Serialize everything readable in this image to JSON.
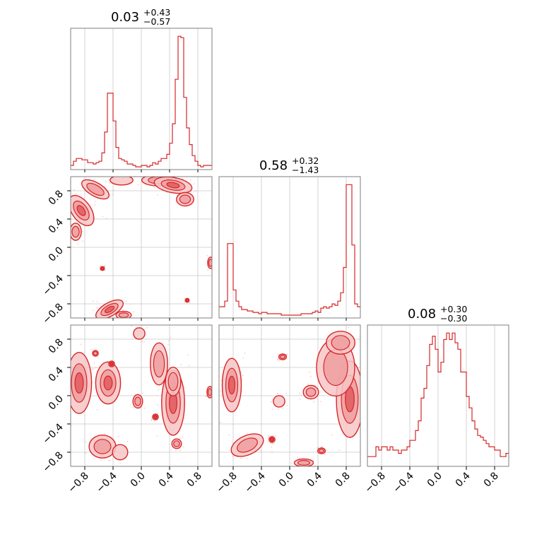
{
  "chart_data": {
    "type": "corner",
    "color": "#d62728",
    "fill_colors": [
      "#f7c6c7",
      "#ee9ea0",
      "#e05a5e"
    ],
    "axis_range": [
      -1.0,
      1.0
    ],
    "ticks": [
      -0.8,
      -0.4,
      0.0,
      0.4,
      0.8
    ],
    "tick_labels": [
      "−0.8",
      "−0.4",
      "0.0",
      "0.4",
      "0.8"
    ],
    "grid": true,
    "parameters": [
      {
        "median": "0.03",
        "plus": "+0.43",
        "minus": "−0.57"
      },
      {
        "median": "0.58",
        "plus": "+0.32",
        "minus": "−1.43"
      },
      {
        "median": "0.08",
        "plus": "+0.30",
        "minus": "−0.30"
      }
    ],
    "histograms": [
      {
        "bin_edges": [
          -1.0,
          1.0
        ],
        "values": [
          0.03,
          0.06,
          0.08,
          0.08,
          0.07,
          0.07,
          0.05,
          0.05,
          0.04,
          0.05,
          0.06,
          0.12,
          0.27,
          0.55,
          0.55,
          0.35,
          0.16,
          0.08,
          0.07,
          0.06,
          0.04,
          0.04,
          0.03,
          0.02,
          0.02,
          0.03,
          0.03,
          0.02,
          0.03,
          0.05,
          0.04,
          0.06,
          0.08,
          0.08,
          0.11,
          0.19,
          0.33,
          0.65,
          0.96,
          0.95,
          0.52,
          0.3,
          0.18,
          0.1,
          0.06,
          0.03,
          0.02,
          0.03,
          0.03,
          0.03
        ]
      },
      {
        "bin_edges": [
          -1.0,
          1.0
        ],
        "values": [
          0.08,
          0.08,
          0.12,
          0.53,
          0.53,
          0.2,
          0.12,
          0.08,
          0.06,
          0.06,
          0.05,
          0.05,
          0.04,
          0.04,
          0.03,
          0.04,
          0.04,
          0.03,
          0.03,
          0.03,
          0.03,
          0.03,
          0.02,
          0.02,
          0.02,
          0.02,
          0.02,
          0.02,
          0.02,
          0.03,
          0.03,
          0.03,
          0.03,
          0.04,
          0.05,
          0.04,
          0.07,
          0.08,
          0.07,
          0.08,
          0.1,
          0.09,
          0.12,
          0.18,
          0.36,
          0.95,
          0.95,
          0.52,
          0.1,
          0.08
        ]
      },
      {
        "bin_edges": [
          -1.0,
          1.0
        ],
        "values": [
          0.06,
          0.06,
          0.06,
          0.12,
          0.1,
          0.12,
          0.12,
          0.1,
          0.12,
          0.1,
          0.1,
          0.08,
          0.1,
          0.1,
          0.12,
          0.16,
          0.16,
          0.22,
          0.28,
          0.42,
          0.48,
          0.62,
          0.75,
          0.8,
          0.72,
          0.58,
          0.64,
          0.78,
          0.82,
          0.78,
          0.82,
          0.76,
          0.72,
          0.58,
          0.58,
          0.43,
          0.36,
          0.28,
          0.23,
          0.19,
          0.18,
          0.16,
          0.14,
          0.12,
          0.12,
          0.1,
          0.1,
          0.06,
          0.06,
          0.08
        ]
      }
    ],
    "pairs": [
      {
        "x_param": 0,
        "y_param": 1,
        "blobs": [
          {
            "cx": -0.85,
            "cy": 0.52,
            "rx": 0.18,
            "ry": 0.1,
            "rot": -55,
            "level": 3
          },
          {
            "cx": -0.93,
            "cy": 0.22,
            "rx": 0.06,
            "ry": 0.09,
            "rot": 0,
            "level": 2
          },
          {
            "cx": -0.65,
            "cy": 0.82,
            "rx": 0.16,
            "ry": 0.07,
            "rot": -30,
            "level": 2
          },
          {
            "cx": -0.28,
            "cy": 0.95,
            "rx": 0.12,
            "ry": 0.05,
            "rot": 0,
            "level": 1
          },
          {
            "cx": 0.25,
            "cy": 0.95,
            "rx": 0.18,
            "ry": 0.06,
            "rot": 0,
            "level": 2
          },
          {
            "cx": 0.45,
            "cy": 0.88,
            "rx": 0.2,
            "ry": 0.08,
            "rot": -10,
            "level": 3
          },
          {
            "cx": 0.62,
            "cy": 0.68,
            "rx": 0.09,
            "ry": 0.07,
            "rot": 0,
            "level": 2
          },
          {
            "cx": -0.45,
            "cy": -0.88,
            "rx": 0.16,
            "ry": 0.07,
            "rot": 30,
            "level": 3
          },
          {
            "cx": -0.25,
            "cy": -0.96,
            "rx": 0.08,
            "ry": 0.04,
            "rot": 0,
            "level": 2
          },
          {
            "cx": 0.98,
            "cy": -0.22,
            "rx": 0.03,
            "ry": 0.06,
            "rot": 0,
            "level": 2
          },
          {
            "cx": -0.55,
            "cy": -0.3,
            "rx": 0.02,
            "ry": 0.02,
            "rot": 0,
            "level": 3
          },
          {
            "cx": 0.65,
            "cy": -0.75,
            "rx": 0.02,
            "ry": 0.02,
            "rot": 0,
            "level": 3
          }
        ]
      },
      {
        "x_param": 0,
        "y_param": 2,
        "blobs": [
          {
            "cx": -0.88,
            "cy": 0.18,
            "rx": 0.13,
            "ry": 0.32,
            "rot": 0,
            "level": 3
          },
          {
            "cx": -0.47,
            "cy": 0.18,
            "rx": 0.13,
            "ry": 0.22,
            "rot": 0,
            "level": 3
          },
          {
            "cx": 0.45,
            "cy": -0.1,
            "rx": 0.12,
            "ry": 0.34,
            "rot": 0,
            "level": 3
          },
          {
            "cx": 0.25,
            "cy": 0.45,
            "rx": 0.09,
            "ry": 0.22,
            "rot": 0,
            "level": 2
          },
          {
            "cx": 0.45,
            "cy": 0.2,
            "rx": 0.08,
            "ry": 0.15,
            "rot": 0,
            "level": 2
          },
          {
            "cx": -0.55,
            "cy": -0.72,
            "rx": 0.14,
            "ry": 0.12,
            "rot": 0,
            "level": 2
          },
          {
            "cx": -0.3,
            "cy": -0.8,
            "rx": 0.08,
            "ry": 0.08,
            "rot": 0,
            "level": 1
          },
          {
            "cx": -0.05,
            "cy": -0.08,
            "rx": 0.05,
            "ry": 0.07,
            "rot": 0,
            "level": 2
          },
          {
            "cx": 0.5,
            "cy": -0.68,
            "rx": 0.05,
            "ry": 0.05,
            "rot": 0,
            "level": 2
          },
          {
            "cx": -0.03,
            "cy": 0.88,
            "rx": 0.06,
            "ry": 0.06,
            "rot": 0,
            "level": 1
          },
          {
            "cx": -0.65,
            "cy": 0.6,
            "rx": 0.03,
            "ry": 0.03,
            "rot": 0,
            "level": 2
          },
          {
            "cx": 0.97,
            "cy": 0.05,
            "rx": 0.03,
            "ry": 0.06,
            "rot": 0,
            "level": 2
          },
          {
            "cx": -0.42,
            "cy": 0.45,
            "rx": 0.03,
            "ry": 0.03,
            "rot": 0,
            "level": 3
          },
          {
            "cx": 0.2,
            "cy": -0.3,
            "rx": 0.03,
            "ry": 0.03,
            "rot": 0,
            "level": 3
          }
        ]
      },
      {
        "x_param": 1,
        "y_param": 2,
        "blobs": [
          {
            "cx": -0.82,
            "cy": 0.15,
            "rx": 0.1,
            "ry": 0.28,
            "rot": 0,
            "level": 3
          },
          {
            "cx": 0.85,
            "cy": -0.05,
            "rx": 0.14,
            "ry": 0.4,
            "rot": 0,
            "level": 3
          },
          {
            "cx": 0.65,
            "cy": 0.4,
            "rx": 0.2,
            "ry": 0.3,
            "rot": 0,
            "level": 2
          },
          {
            "cx": 0.72,
            "cy": 0.75,
            "rx": 0.15,
            "ry": 0.12,
            "rot": 0,
            "level": 2
          },
          {
            "cx": -0.6,
            "cy": -0.7,
            "rx": 0.18,
            "ry": 0.1,
            "rot": 25,
            "level": 2
          },
          {
            "cx": -0.15,
            "cy": -0.08,
            "rx": 0.06,
            "ry": 0.06,
            "rot": 0,
            "level": 1
          },
          {
            "cx": 0.3,
            "cy": 0.05,
            "rx": 0.08,
            "ry": 0.07,
            "rot": 0,
            "level": 2
          },
          {
            "cx": 0.2,
            "cy": -0.95,
            "rx": 0.1,
            "ry": 0.04,
            "rot": 0,
            "level": 2
          },
          {
            "cx": 0.45,
            "cy": -0.78,
            "rx": 0.04,
            "ry": 0.03,
            "rot": 0,
            "level": 2
          },
          {
            "cx": -0.25,
            "cy": -0.62,
            "rx": 0.03,
            "ry": 0.03,
            "rot": 0,
            "level": 3
          },
          {
            "cx": -0.1,
            "cy": 0.55,
            "rx": 0.04,
            "ry": 0.03,
            "rot": 0,
            "level": 2
          }
        ]
      }
    ]
  }
}
